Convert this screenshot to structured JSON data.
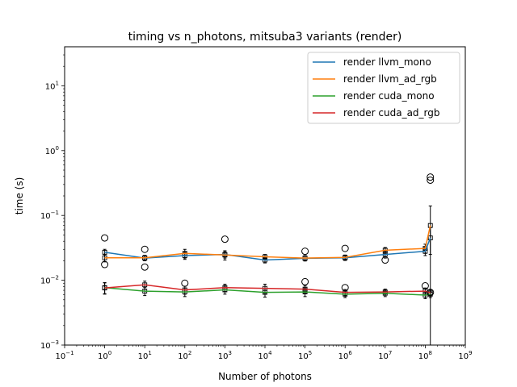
{
  "chart_data": {
    "type": "line",
    "title": "timing vs n_photons, mitsuba3 variants (render)",
    "xlabel": "Number of photons",
    "ylabel": "time (s)",
    "xscale": "log",
    "yscale": "log",
    "xlim": [
      0.1,
      1000000000
    ],
    "ylim": [
      0.001,
      40
    ],
    "grid": false,
    "legend_position": "top-right",
    "x_ticks": [
      {
        "value": 0.1,
        "base": "10",
        "exp": "−1"
      },
      {
        "value": 1,
        "base": "10",
        "exp": "0"
      },
      {
        "value": 10,
        "base": "10",
        "exp": "1"
      },
      {
        "value": 100,
        "base": "10",
        "exp": "2"
      },
      {
        "value": 1000,
        "base": "10",
        "exp": "3"
      },
      {
        "value": 10000,
        "base": "10",
        "exp": "4"
      },
      {
        "value": 100000,
        "base": "10",
        "exp": "5"
      },
      {
        "value": 1000000,
        "base": "10",
        "exp": "6"
      },
      {
        "value": 10000000,
        "base": "10",
        "exp": "7"
      },
      {
        "value": 100000000,
        "base": "10",
        "exp": "8"
      },
      {
        "value": 1000000000,
        "base": "10",
        "exp": "9"
      }
    ],
    "y_ticks": [
      {
        "value": 0.001,
        "base": "10",
        "exp": "−3"
      },
      {
        "value": 0.01,
        "base": "10",
        "exp": "−2"
      },
      {
        "value": 0.1,
        "base": "10",
        "exp": "−1"
      },
      {
        "value": 1,
        "base": "10",
        "exp": "0"
      },
      {
        "value": 10,
        "base": "10",
        "exp": "1"
      }
    ],
    "x": [
      1,
      10,
      100,
      1000,
      10000,
      100000,
      1000000,
      10000000,
      100000000,
      134217728
    ],
    "series": [
      {
        "name": "render llvm_mono",
        "color": "#1f77b4",
        "values": [
          0.027,
          0.022,
          0.024,
          0.025,
          0.0205,
          0.0218,
          0.0222,
          0.025,
          0.028,
          0.045
        ],
        "err": [
          0.003,
          0.002,
          0.003,
          0.003,
          0.002,
          0.002,
          0.002,
          0.003,
          0.004,
          0.02
        ]
      },
      {
        "name": "render llvm_ad_rgb",
        "color": "#ff7f0e",
        "values": [
          0.0222,
          0.0222,
          0.026,
          0.0245,
          0.023,
          0.022,
          0.0225,
          0.029,
          0.031,
          0.07
        ],
        "err": [
          0.003,
          0.002,
          0.004,
          0.004,
          0.002,
          0.002,
          0.002,
          0.003,
          0.005,
          0.07
        ]
      },
      {
        "name": "render cuda_mono",
        "color": "#2ca02c",
        "values": [
          0.0077,
          0.0068,
          0.0066,
          0.0071,
          0.0065,
          0.0066,
          0.0061,
          0.0063,
          0.0059,
          0.0061
        ],
        "err": [
          0.0015,
          0.001,
          0.001,
          0.001,
          0.001,
          0.001,
          0.0007,
          0.0007,
          0.0007,
          0.0007
        ]
      },
      {
        "name": "render cuda_ad_rgb",
        "color": "#d62728",
        "values": [
          0.0076,
          0.0085,
          0.0071,
          0.0077,
          0.0075,
          0.0073,
          0.0065,
          0.0066,
          0.0068,
          0.0064
        ],
        "err": [
          0.0015,
          0.0012,
          0.001,
          0.001,
          0.0012,
          0.001,
          0.0007,
          0.0007,
          0.0008,
          0.0007
        ]
      }
    ],
    "outliers": [
      {
        "x": 1,
        "y": 0.045
      },
      {
        "x": 1,
        "y": 0.0175
      },
      {
        "x": 10,
        "y": 0.03
      },
      {
        "x": 10,
        "y": 0.016
      },
      {
        "x": 100,
        "y": 0.009
      },
      {
        "x": 1000,
        "y": 0.043
      },
      {
        "x": 100000,
        "y": 0.028
      },
      {
        "x": 100000,
        "y": 0.0095
      },
      {
        "x": 1000000,
        "y": 0.031
      },
      {
        "x": 1000000,
        "y": 0.0077
      },
      {
        "x": 10000000,
        "y": 0.0205
      },
      {
        "x": 100000000,
        "y": 0.0082
      },
      {
        "x": 134217728,
        "y": 0.39
      },
      {
        "x": 134217728,
        "y": 0.35
      },
      {
        "x": 134217728,
        "y": 0.0065
      }
    ]
  }
}
